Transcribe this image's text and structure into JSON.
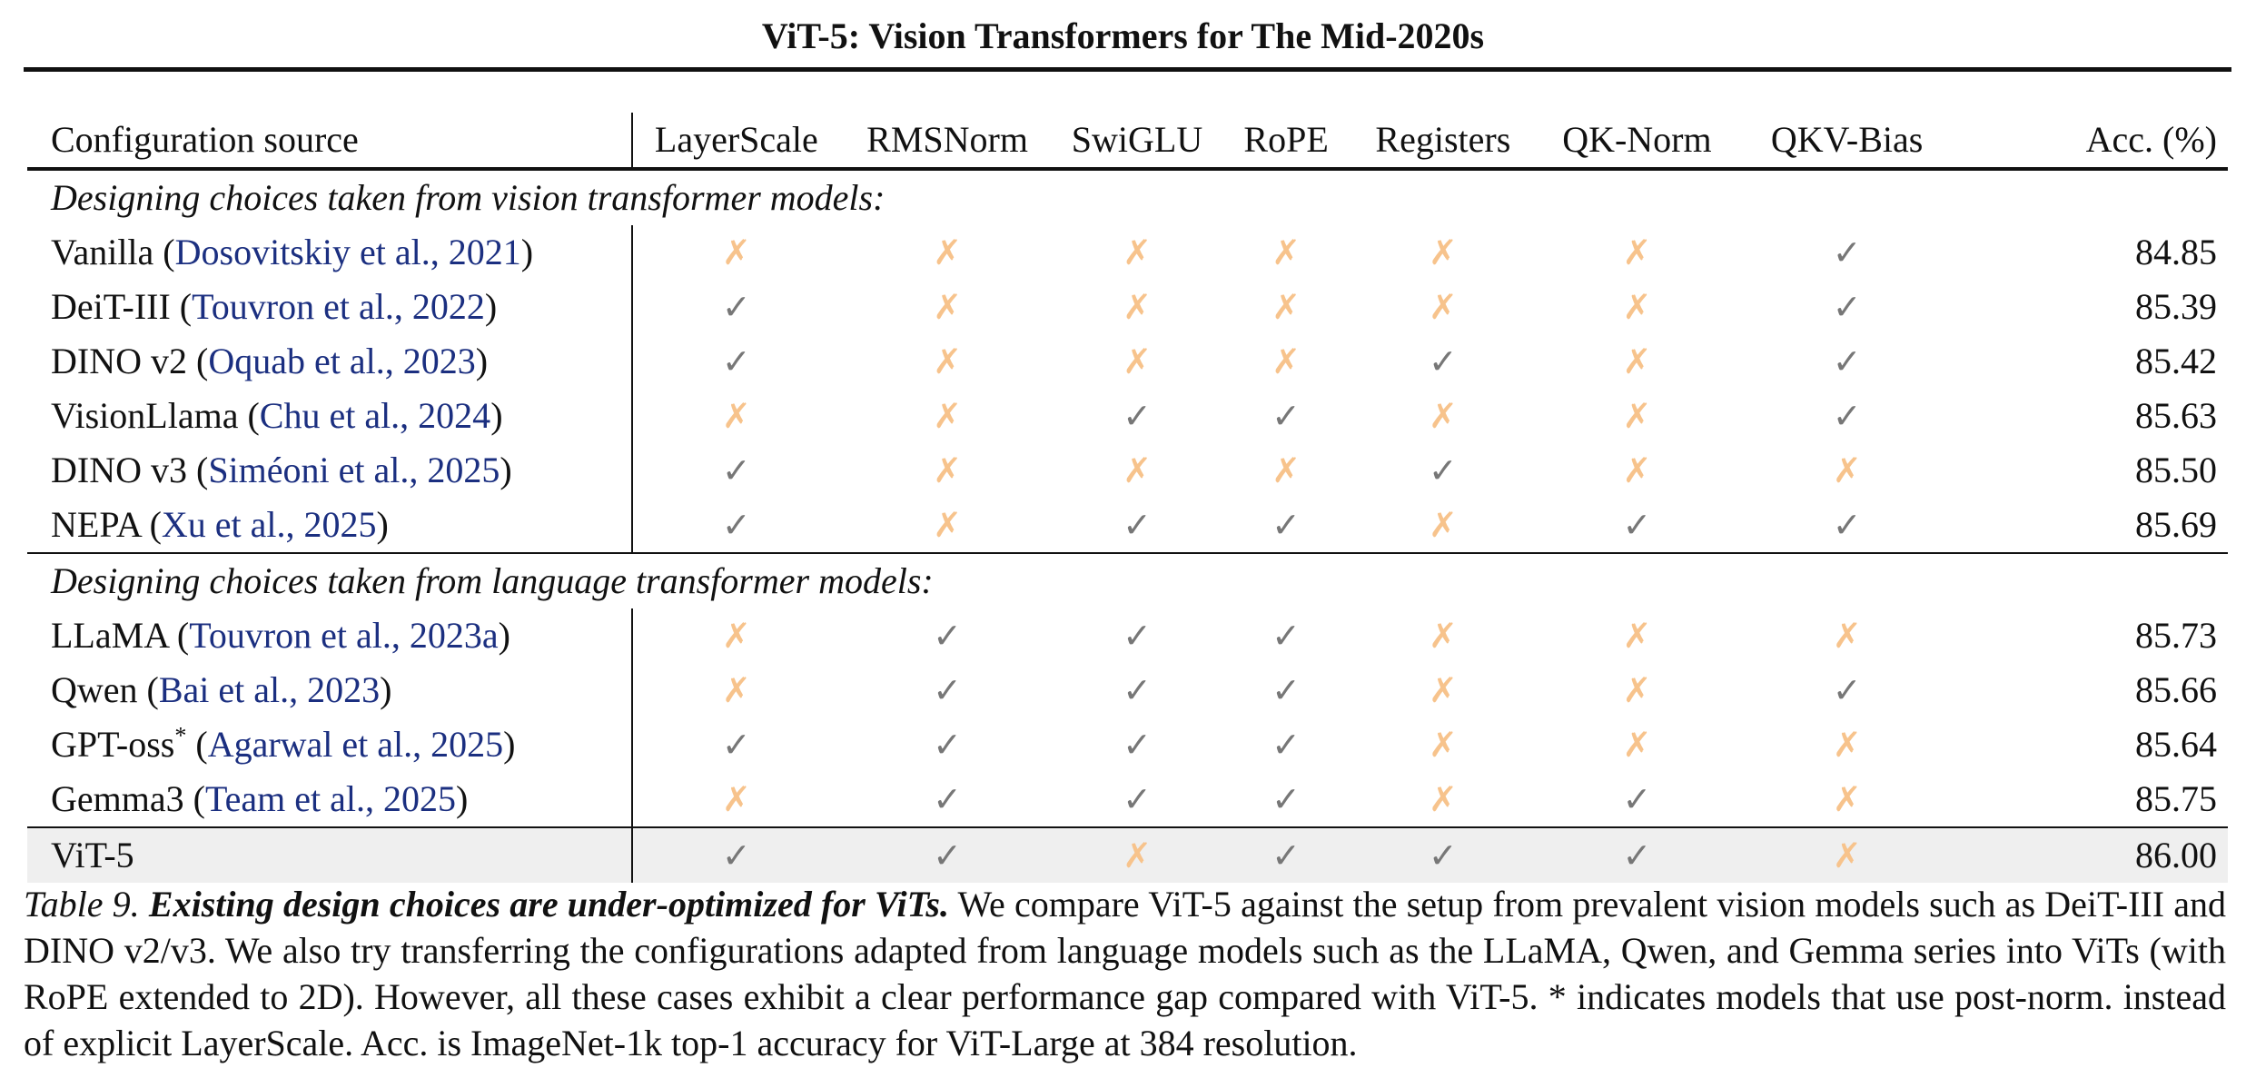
{
  "header": {
    "title": "ViT-5: Vision Transformers for The Mid-2020s"
  },
  "table": {
    "columns": [
      "Configuration source",
      "LayerScale",
      "RMSNorm",
      "SwiGLU",
      "RoPE",
      "Registers",
      "QK-Norm",
      "QKV-Bias",
      "Acc. (%)"
    ],
    "sections": [
      {
        "heading": "Designing choices taken from vision transformer models:",
        "rows": [
          {
            "name": "Vanilla (",
            "cite": "Dosovitskiy et al., 2021",
            "close": ")",
            "sup": "",
            "marks": [
              "✗",
              "✗",
              "✗",
              "✗",
              "✗",
              "✗",
              "✓"
            ],
            "acc": "84.85"
          },
          {
            "name": "DeiT-III (",
            "cite": "Touvron et al., 2022",
            "close": ")",
            "sup": "",
            "marks": [
              "✓",
              "✗",
              "✗",
              "✗",
              "✗",
              "✗",
              "✓"
            ],
            "acc": "85.39"
          },
          {
            "name": "DINO v2 (",
            "cite": "Oquab et al., 2023",
            "close": ")",
            "sup": "",
            "marks": [
              "✓",
              "✗",
              "✗",
              "✗",
              "✓",
              "✗",
              "✓"
            ],
            "acc": "85.42"
          },
          {
            "name": "VisionLlama (",
            "cite": "Chu et al., 2024",
            "close": ")",
            "sup": "",
            "marks": [
              "✗",
              "✗",
              "✓",
              "✓",
              "✗",
              "✗",
              "✓"
            ],
            "acc": "85.63"
          },
          {
            "name": "DINO v3 (",
            "cite": "Siméoni et al., 2025",
            "close": ")",
            "sup": "",
            "marks": [
              "✓",
              "✗",
              "✗",
              "✗",
              "✓",
              "✗",
              "✗"
            ],
            "acc": "85.50"
          },
          {
            "name": "NEPA (",
            "cite": "Xu et al., 2025",
            "close": ")",
            "sup": "",
            "marks": [
              "✓",
              "✗",
              "✓",
              "✓",
              "✗",
              "✓",
              "✓"
            ],
            "acc": "85.69"
          }
        ]
      },
      {
        "heading": "Designing choices taken from language transformer models:",
        "rows": [
          {
            "name": "LLaMA (",
            "cite": "Touvron et al., 2023a",
            "close": ")",
            "sup": "",
            "marks": [
              "✗",
              "✓",
              "✓",
              "✓",
              "✗",
              "✗",
              "✗"
            ],
            "acc": "85.73"
          },
          {
            "name": "Qwen (",
            "cite": "Bai et al., 2023",
            "close": ")",
            "sup": "",
            "marks": [
              "✗",
              "✓",
              "✓",
              "✓",
              "✗",
              "✗",
              "✓"
            ],
            "acc": "85.66"
          },
          {
            "name": "GPT-oss",
            "cite": "Agarwal et al., 2025",
            "close": ")",
            "sup": "*",
            "marks": [
              "✓",
              "✓",
              "✓",
              "✓",
              "✗",
              "✗",
              "✗"
            ],
            "acc": "85.64"
          },
          {
            "name": "Gemma3 (",
            "cite": "Team et al., 2025",
            "close": ")",
            "sup": "",
            "marks": [
              "✗",
              "✓",
              "✓",
              "✓",
              "✗",
              "✓",
              "✗"
            ],
            "acc": "85.75"
          }
        ]
      }
    ],
    "highlight": {
      "name": "ViT-5",
      "marks": [
        "✓",
        "✓",
        "✗",
        "✓",
        "✓",
        "✓",
        "✗"
      ],
      "acc": "86.00"
    }
  },
  "caption": {
    "label": "Table 9.",
    "title": "Existing design choices are under-optimized for ViTs.",
    "body": "We compare ViT-5 against the setup from prevalent vision models such as DeiT-III and DINO v2/v3. We also try transferring the configurations adapted from language models such as the LLaMA, Qwen, and Gemma series into ViTs (with RoPE extended to 2D). However, all these cases exhibit a clear performance gap compared with ViT-5. * indicates models that use post-norm. instead of explicit LayerScale. Acc. is ImageNet-1k top-1 accuracy for ViT-Large at 384 resolution."
  }
}
